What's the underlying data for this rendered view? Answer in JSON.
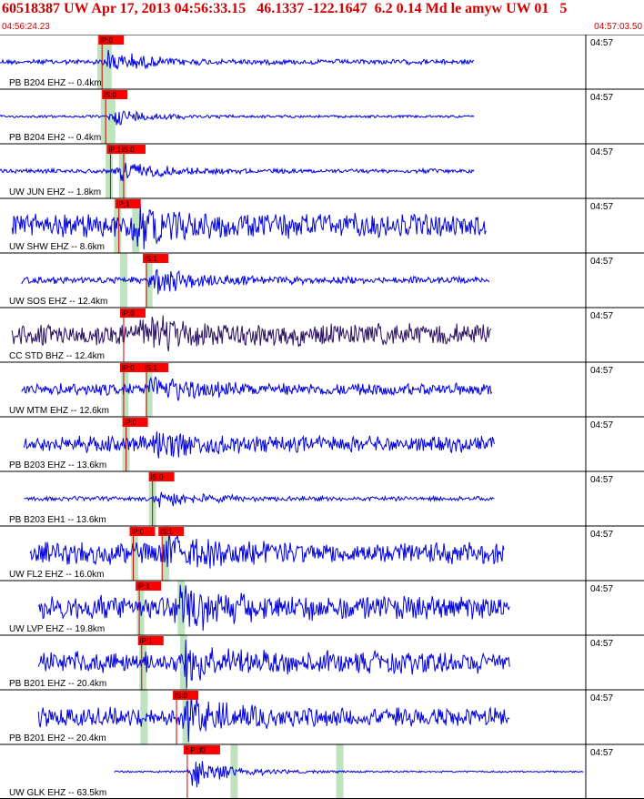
{
  "header": {
    "title": "60518387 UW Apr 17, 2013 04:56:33.15   46.1337 -122.1647  6.2 0.14 Md le amyw UW 01   5",
    "start_time": "04:56:24.23",
    "end_time": "04:57:03.50"
  },
  "colors": {
    "trace": "#0000e0",
    "trace_dark": "#2a1060",
    "pick_box": "#ff0000",
    "pick_line": "#cc0000",
    "synthetic_curve": "#000000",
    "window_band": "#bfe3bf",
    "header_text": "#d00000",
    "grid": "#000000"
  },
  "chart_data": {
    "type": "line",
    "title": "60518387 UW Apr 17, 2013 04:56:33.15   46.1337 -122.1647  6.2 0.14 Md le amyw UW 01   5",
    "x_start": "04:56:24.23",
    "x_end": "04:57:03.50",
    "minute_mark": "04:57",
    "channels": [
      {
        "label": "PB B204 EHZ -- 0.4km",
        "picks": [
          {
            "label": "iP:0",
            "t": 8.5
          }
        ],
        "bands": [
          8.4,
          9.0
        ],
        "amp": 0.25,
        "env_start": 0.0,
        "env_end": 39.5,
        "burst": 9.0,
        "noise": 0.06,
        "color": "trace"
      },
      {
        "label": "PB B204 EH2 -- 0.4km",
        "picks": [
          {
            "label": "iS:0",
            "t": 8.8
          }
        ],
        "bands": [
          8.7,
          9.3
        ],
        "amp": 0.2,
        "env_start": 0.0,
        "env_end": 39.5,
        "burst": 9.5,
        "noise": 0.03,
        "color": "trace"
      },
      {
        "label": "UW JUN EHZ -- 1.8km",
        "picks": [
          {
            "label": "iP:1",
            "t": 9.2
          },
          {
            "label": "iS:0",
            "t": 10.3
          }
        ],
        "bands": [
          9.1,
          10.2
        ],
        "amp": 0.25,
        "env_start": 0.0,
        "env_end": 39.5,
        "burst": 10.0,
        "noise": 0.05,
        "color": "trace"
      },
      {
        "label": "UW SHW EHZ -- 8.6km",
        "picks": [
          {
            "label": "iP:1",
            "t": 9.9
          }
        ],
        "bands": [
          9.8,
          11.3
        ],
        "amp": 0.35,
        "env_start": 1.0,
        "env_end": 40.5,
        "burst": 11.0,
        "noise": 0.28,
        "color": "trace"
      },
      {
        "label": "UW SOS EHZ -- 12.4km",
        "picks": [
          {
            "label": "iS:1",
            "t": 12.2
          }
        ],
        "bands": [
          10.3,
          12.4
        ],
        "amp": 0.35,
        "env_start": 1.8,
        "env_end": 40.8,
        "burst": 12.8,
        "noise": 0.08,
        "color": "trace"
      },
      {
        "label": "CC STD BHZ -- 12.4km",
        "picks": [
          {
            "label": "iP:0",
            "t": 10.3
          }
        ],
        "bands": [],
        "amp": 0.3,
        "env_start": 1.0,
        "env_end": 41.0,
        "burst": 12.0,
        "noise": 0.25,
        "color": "trace_dark"
      },
      {
        "label": "UW MTM EHZ -- 12.6km",
        "picks": [
          {
            "label": "iP:0",
            "t": 10.3
          },
          {
            "label": "iS:1",
            "t": 12.2
          }
        ],
        "bands": [
          10.4,
          12.4
        ],
        "amp": 0.3,
        "env_start": 1.8,
        "env_end": 41.0,
        "burst": 12.5,
        "noise": 0.14,
        "color": "trace"
      },
      {
        "label": "PB B203 EHZ -- 13.6km",
        "picks": [
          {
            "label": "iP:0",
            "t": 10.5
          }
        ],
        "bands": [
          10.5
        ],
        "amp": 0.3,
        "env_start": 2.0,
        "env_end": 41.2,
        "burst": 13.0,
        "noise": 0.18,
        "color": "trace"
      },
      {
        "label": "PB B203 EH1 -- 13.6km",
        "picks": [
          {
            "label": "iS:0",
            "t": 12.7
          }
        ],
        "bands": [
          12.7
        ],
        "amp": 0.2,
        "env_start": 2.0,
        "env_end": 41.2,
        "burst": 13.2,
        "noise": 0.05,
        "color": "trace"
      },
      {
        "label": "UW FL2 EHZ -- 16.0km",
        "picks": [
          {
            "label": "iP:0",
            "t": 11.1
          },
          {
            "label": "iS:1",
            "t": 13.5
          }
        ],
        "bands": [
          11.2,
          13.8
        ],
        "amp": 0.3,
        "env_start": 2.5,
        "env_end": 42.0,
        "burst": 13.8,
        "noise": 0.25,
        "color": "trace"
      },
      {
        "label": "UW LVP EHZ -- 19.8km",
        "picks": [
          {
            "label": "iP:1",
            "t": 11.6
          }
        ],
        "bands": [
          11.7,
          15.1
        ],
        "amp": 0.35,
        "env_start": 3.2,
        "env_end": 42.5,
        "burst": 15.0,
        "noise": 0.28,
        "color": "trace"
      },
      {
        "label": "PB B201 EHZ -- 20.4km",
        "picks": [
          {
            "label": "iP:1",
            "t": 11.8
          }
        ],
        "bands": [
          11.9,
          15.3
        ],
        "amp": 0.35,
        "env_start": 3.2,
        "env_end": 42.5,
        "burst": 15.4,
        "noise": 0.25,
        "color": "trace"
      },
      {
        "label": "PB B201 EH2 -- 20.4km",
        "picks": [
          {
            "label": "iS:0",
            "t": 14.7
          }
        ],
        "bands": [
          12.0,
          15.5
        ],
        "amp": 0.35,
        "env_start": 3.2,
        "env_end": 42.5,
        "burst": 15.5,
        "noise": 0.22,
        "color": "trace"
      },
      {
        "label": "UW GLK EHZ -- 63.5km",
        "picks": [
          {
            "label": "* P:d0",
            "t": 15.6
          }
        ],
        "bands": [
          19.5,
          28.3
        ],
        "amp": 0.35,
        "env_start": 9.5,
        "env_end": 50.0,
        "burst": 16.0,
        "noise": 0.02,
        "color": "trace"
      }
    ]
  }
}
